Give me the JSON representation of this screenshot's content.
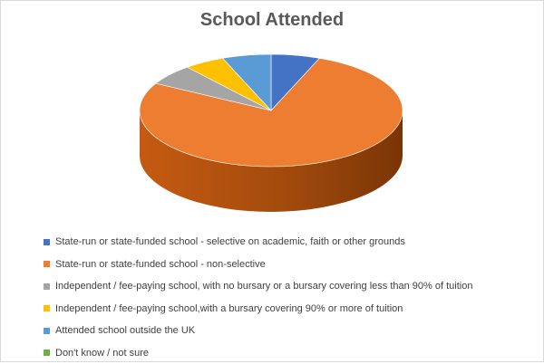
{
  "chart_data": {
    "type": "pie",
    "title": "School Attended",
    "legend_position": "bottom",
    "slices": [
      {
        "label": "State-run or state-funded school - selective on academic, faith or other grounds",
        "value": 6,
        "color": "#4472c4"
      },
      {
        "label": "State-run or state-funded school - non-selective",
        "value": 77,
        "color": "#ed7d31"
      },
      {
        "label": "Independent / fee-paying school, with no bursary or a bursary covering less than 90% of tuition",
        "value": 6,
        "color": "#a5a5a5"
      },
      {
        "label": "Independent / fee-paying school,with a bursary covering 90% or more of tuition",
        "value": 5,
        "color": "#ffc000"
      },
      {
        "label": "Attended school outside the UK",
        "value": 6,
        "color": "#5b9bd5"
      },
      {
        "label": "Don't know / not sure",
        "value": 0,
        "color": "#70ad47"
      }
    ]
  }
}
